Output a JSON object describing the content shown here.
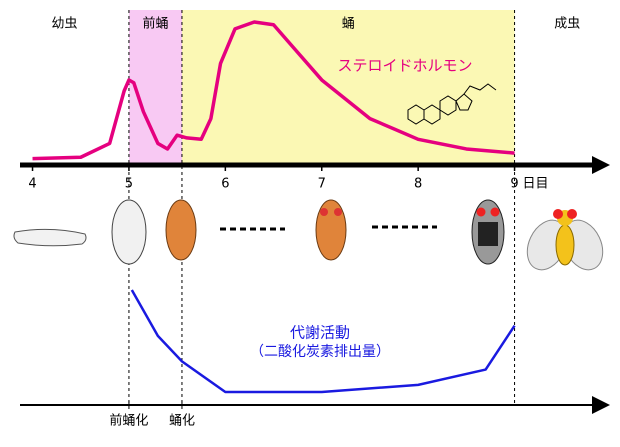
{
  "chart_data": [
    {
      "type": "line",
      "xlim": [
        3.87,
        9.99
      ],
      "xticks": [
        4,
        5,
        6,
        7,
        8,
        {
          "value": 9,
          "label": "9"
        }
      ],
      "x_unit": "日目",
      "ylim": [
        0,
        100
      ],
      "stages": [
        {
          "name": "幼虫",
          "end": 5
        },
        {
          "name": "前蛹",
          "start": 5,
          "end": 5.55,
          "color": "#f8c9f3"
        },
        {
          "name": "蛹",
          "start": 5.55,
          "end": 9,
          "color": "#fbf8b4"
        },
        {
          "name": "成虫",
          "start": 9
        }
      ],
      "series": [
        {
          "name": "ステロイドホルモン",
          "color": "#e5007f",
          "x": [
            4,
            4.5,
            4.8,
            4.95,
            5.0,
            5.05,
            5.15,
            5.3,
            5.4,
            5.5,
            5.6,
            5.75,
            5.85,
            5.95,
            6.1,
            6.3,
            6.5,
            6.7,
            7.0,
            7.5,
            8.0,
            8.5,
            9.0
          ],
          "values": [
            1,
            2,
            12,
            50,
            58,
            56,
            35,
            12,
            8,
            18,
            16,
            15,
            30,
            70,
            95,
            100,
            98,
            82,
            58,
            30,
            15,
            8,
            5
          ]
        }
      ]
    },
    {
      "type": "line",
      "xlim": [
        3.87,
        9.99
      ],
      "ylim": [
        0,
        100
      ],
      "events": [
        {
          "label": "前蛹化",
          "x": 5
        },
        {
          "label": "蛹化",
          "x": 5.55
        }
      ],
      "series": [
        {
          "name": "代謝活動",
          "color": "#1a1ae0",
          "x": [
            5.03,
            5.3,
            5.55,
            6.0,
            7.0,
            8.0,
            8.7,
            9.0
          ],
          "values": [
            100,
            55,
            30,
            0,
            0,
            7,
            22,
            65
          ]
        }
      ],
      "annotation": "（二酸化炭素排出量）"
    }
  ]
}
